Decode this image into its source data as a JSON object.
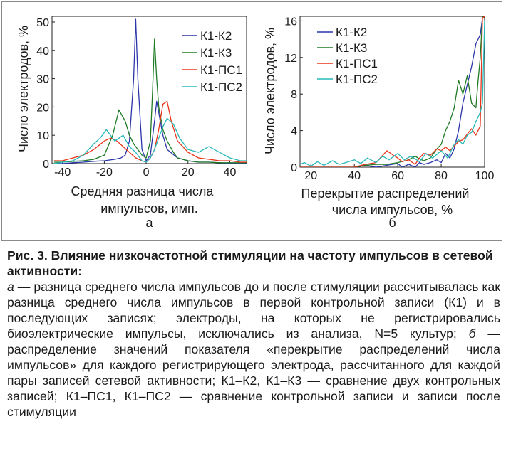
{
  "chart_data": [
    {
      "type": "line",
      "panel_label": "а",
      "xlabel_line1": "Средняя разница числа",
      "xlabel_line2": "импульсов, имп.",
      "ylabel": "Число электродов, %",
      "xlim": [
        -45,
        48
      ],
      "ylim": [
        0,
        52
      ],
      "xticks": [
        -40,
        -20,
        0,
        20,
        40
      ],
      "yticks": [
        0,
        10,
        20,
        30,
        40,
        50
      ],
      "grid": false,
      "legend_position": "top-right",
      "series": [
        {
          "name": "К1-К2",
          "color": "#2b36a8",
          "x": [
            -44,
            -40,
            -35,
            -30,
            -25,
            -20,
            -15,
            -12,
            -10,
            -8,
            -6,
            -5,
            -4,
            -2,
            0,
            2,
            4,
            5,
            6,
            8,
            10,
            15,
            20,
            25,
            30,
            35,
            40,
            45,
            48
          ],
          "y": [
            0,
            0,
            0.3,
            0.5,
            0.8,
            1,
            1.5,
            2,
            3,
            8,
            30,
            51,
            30,
            5,
            1,
            3,
            15,
            22,
            18,
            10,
            5,
            2,
            1,
            0.5,
            0.5,
            0.3,
            0,
            0,
            0
          ]
        },
        {
          "name": "К1-К3",
          "color": "#1e7a24",
          "x": [
            -44,
            -40,
            -35,
            -30,
            -25,
            -20,
            -16,
            -13,
            -10,
            -8,
            -6,
            -4,
            -2,
            0,
            2,
            3,
            4,
            5,
            6,
            8,
            10,
            13,
            15,
            20,
            25,
            30,
            35,
            40,
            45,
            48
          ],
          "y": [
            0.5,
            0.5,
            0.8,
            1,
            1.5,
            3,
            10,
            19,
            15,
            10,
            7,
            5,
            3,
            2,
            8,
            25,
            44,
            30,
            20,
            12,
            8,
            4,
            2,
            1,
            0.5,
            0.5,
            0.3,
            0.3,
            0.3,
            0.3
          ]
        },
        {
          "name": "К1-ПС1",
          "color": "#e8351a",
          "x": [
            -44,
            -40,
            -35,
            -30,
            -25,
            -20,
            -17,
            -14,
            -11,
            -8,
            -5,
            -2,
            0,
            2,
            4,
            6,
            8,
            10,
            12,
            15,
            20,
            25,
            30,
            35,
            40,
            45,
            48
          ],
          "y": [
            1,
            1,
            2,
            3,
            5,
            8,
            9,
            8,
            6,
            4,
            2,
            1,
            0.5,
            2,
            5,
            12,
            21,
            22,
            15,
            8,
            4,
            2,
            1.5,
            1,
            1,
            0.5,
            0.5
          ]
        },
        {
          "name": "К1-ПС2",
          "color": "#27b8b8",
          "x": [
            -44,
            -40,
            -35,
            -30,
            -25,
            -22,
            -19,
            -15,
            -11,
            -8,
            -5,
            -2,
            0,
            2,
            4,
            6,
            8,
            10,
            13,
            16,
            20,
            25,
            30,
            35,
            40,
            45,
            48
          ],
          "y": [
            0,
            0.5,
            1,
            3,
            7,
            9,
            12,
            8,
            10,
            6,
            4,
            1,
            0.5,
            2,
            5,
            9,
            13,
            16,
            14,
            9,
            5,
            4,
            6,
            4,
            2,
            1,
            1
          ]
        }
      ]
    },
    {
      "type": "line",
      "panel_label": "б",
      "xlabel_line1": "Перекрытие распределений",
      "xlabel_line2": "числа импульсов, %",
      "ylabel": "Число электродов, %",
      "xlim": [
        15,
        100
      ],
      "ylim": [
        0,
        16.5
      ],
      "xticks": [
        20,
        40,
        60,
        80,
        100
      ],
      "yticks": [
        0,
        4,
        8,
        12,
        16
      ],
      "grid": false,
      "legend_position": "top-left",
      "series": [
        {
          "name": "К1-К2",
          "color": "#2b36a8",
          "x": [
            15,
            20,
            25,
            30,
            35,
            40,
            45,
            50,
            55,
            60,
            62,
            65,
            68,
            70,
            72,
            75,
            78,
            80,
            82,
            84,
            86,
            88,
            90,
            92,
            94,
            96,
            97,
            98,
            99,
            100
          ],
          "y": [
            0,
            0,
            0,
            0,
            0,
            0,
            0.2,
            0,
            0.2,
            0.4,
            0,
            0.3,
            0,
            0.5,
            0.3,
            0.5,
            0.8,
            0.5,
            1.5,
            1,
            2,
            4,
            7,
            9,
            11,
            13.5,
            14,
            14.5,
            16.3,
            16.5
          ]
        },
        {
          "name": "К1-К3",
          "color": "#1e7a24",
          "x": [
            15,
            20,
            25,
            30,
            35,
            40,
            45,
            50,
            55,
            60,
            65,
            68,
            70,
            72,
            75,
            78,
            80,
            82,
            84,
            86,
            88,
            90,
            92,
            94,
            96,
            97,
            98,
            99,
            100
          ],
          "y": [
            0,
            0,
            0,
            0,
            0,
            0,
            0.2,
            0.3,
            0.3,
            0.5,
            0.8,
            1.2,
            0.9,
            0.7,
            1,
            2,
            2.5,
            4,
            5,
            6.5,
            9.5,
            8,
            10,
            7,
            6.5,
            9.5,
            12,
            16.5,
            16.3
          ]
        },
        {
          "name": "К1-ПС1",
          "color": "#e8351a",
          "x": [
            15,
            20,
            25,
            30,
            35,
            40,
            45,
            50,
            55,
            58,
            60,
            62,
            65,
            68,
            70,
            72,
            75,
            78,
            80,
            82,
            84,
            86,
            88,
            90,
            92,
            94,
            96,
            98,
            99,
            100
          ],
          "y": [
            0,
            0,
            0,
            0,
            0,
            0,
            0.3,
            0.5,
            1.8,
            1.3,
            1,
            0.6,
            0.8,
            0.3,
            1,
            1.5,
            1.3,
            2,
            1.8,
            2.2,
            1.8,
            2.3,
            2.8,
            3,
            3.6,
            4.2,
            3.5,
            4.5,
            16.3,
            16.5
          ]
        },
        {
          "name": "К1-ПС2",
          "color": "#27b8b8",
          "x": [
            15,
            17,
            20,
            23,
            26,
            30,
            33,
            36,
            40,
            43,
            46,
            50,
            53,
            56,
            60,
            63,
            66,
            70,
            73,
            76,
            80,
            83,
            86,
            88,
            90,
            92,
            94,
            96,
            98,
            99,
            100
          ],
          "y": [
            0.3,
            0.5,
            0.1,
            0.6,
            0.2,
            0.7,
            0.3,
            0.5,
            0.8,
            0.4,
            1,
            0.5,
            1.2,
            0.8,
            1.5,
            0.8,
            1.2,
            0.6,
            1.5,
            1,
            1.8,
            1,
            2.5,
            3,
            2.5,
            3.5,
            3.8,
            5,
            6,
            7,
            16
          ]
        }
      ]
    }
  ],
  "caption": {
    "title": "Рис. 3. Влияние низкочастотной стимуляции на частоту импульсов в сетевой активности:",
    "body_parts": [
      {
        "text": "а",
        "italic": true
      },
      {
        "text": " — разница среднего числа импульсов до и после стимуляции рассчитывалась как разница среднего числа импульсов в первой контрольной записи (К1) и в последующих записях; электроды, на которых не регистрировались биоэлектрические импульсы, исключались из анализа, N=5 культур; ",
        "italic": false
      },
      {
        "text": "б",
        "italic": true
      },
      {
        "text": " — распределение значений показателя «перекрытие распределений числа импульсов» для каждого регистрирующего электрода, рассчитанного для каждой пары записей сетевой активности; К1–К2, К1–К3 — сравнение двух контрольных записей; К1–ПС1, К1–ПС2 — сравнение контрольной записи и записи после стимуляции",
        "italic": false
      }
    ]
  }
}
